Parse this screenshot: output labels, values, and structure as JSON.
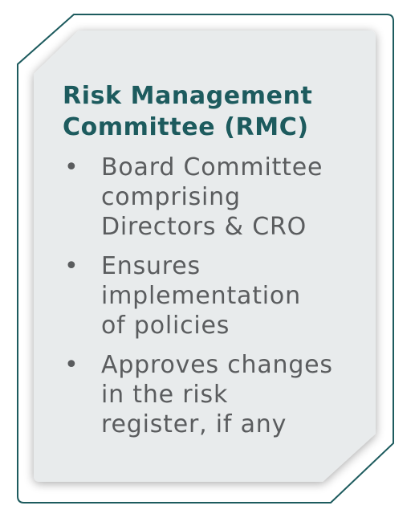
{
  "card": {
    "title_lines": [
      "Risk Management",
      "Committee (RMC)"
    ],
    "bullets": [
      {
        "lines": [
          "Board Committee",
          "comprising",
          "Directors & CRO"
        ]
      },
      {
        "lines": [
          "Ensures",
          "implementation",
          "of policies"
        ]
      },
      {
        "lines": [
          "Approves changes",
          "in the risk",
          "register, if any"
        ]
      }
    ],
    "bullet_symbol": "•"
  },
  "colors": {
    "title": "#1d5b5e",
    "body_text": "#5a5c5e",
    "frame_stroke": "#1d5b5e",
    "panel_fill": "#e8ebec"
  }
}
